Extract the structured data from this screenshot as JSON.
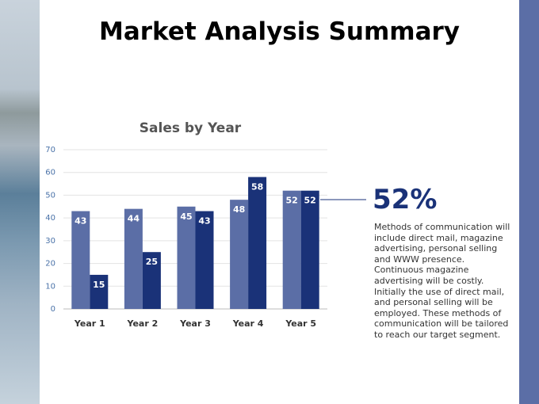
{
  "title": "Market Analysis Summary",
  "chart_data": {
    "type": "bar",
    "title": "Sales by Year",
    "categories": [
      "Year 1",
      "Year 2",
      "Year 3",
      "Year 4",
      "Year 5"
    ],
    "series": [
      {
        "color": "#5b6ea6",
        "values": [
          43,
          44,
          45,
          48,
          52
        ]
      },
      {
        "color": "#1a3278",
        "values": [
          15,
          25,
          43,
          58,
          52
        ]
      }
    ],
    "ylim": [
      0,
      70
    ],
    "yticks": [
      0,
      10,
      20,
      30,
      40,
      50,
      60,
      70
    ],
    "grid": true
  },
  "callout": {
    "headline": "52%",
    "text": "Methods of communication will include direct mail, magazine advertising, personal selling and WWW presence. Continuous magazine advertising will be costly. Initially the use of direct mail, and personal selling will be employed. These methods of communication will be tailored to reach our target segment."
  }
}
